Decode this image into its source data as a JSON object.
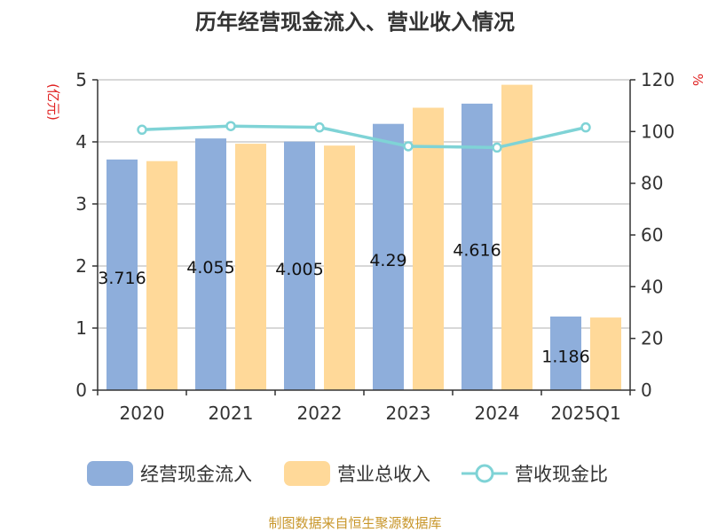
{
  "chart_data": {
    "type": "bar",
    "title": "历年经营现金流入、营业收入情况",
    "left_unit": "(亿元)",
    "right_unit": "%",
    "categories": [
      "2020",
      "2021",
      "2022",
      "2023",
      "2024",
      "2025Q1"
    ],
    "left_ylim": [
      0,
      5
    ],
    "left_ticks": [
      "0",
      "1",
      "2",
      "3",
      "4",
      "5"
    ],
    "right_ylim": [
      0,
      120
    ],
    "right_ticks": [
      "0",
      "20",
      "40",
      "60",
      "80",
      "100",
      "120"
    ],
    "grid": true,
    "legend_position": "bottom",
    "series": [
      {
        "name": "经营现金流入",
        "type": "bar",
        "axis": "left",
        "color": "#8eaedb",
        "values": [
          3.716,
          4.055,
          4.005,
          4.29,
          4.616,
          1.186
        ],
        "labels": [
          "3.716",
          "4.055",
          "4.005",
          "4.29",
          "4.616",
          "1.186"
        ]
      },
      {
        "name": "营业总收入",
        "type": "bar",
        "axis": "left",
        "color": "#ffd999",
        "values": [
          3.69,
          3.97,
          3.94,
          4.55,
          4.92,
          1.17
        ]
      },
      {
        "name": "营收现金比",
        "type": "line",
        "axis": "right",
        "color": "#7fd3d6",
        "values": [
          100.7,
          102.1,
          101.6,
          94.3,
          93.8,
          101.6
        ]
      }
    ],
    "source": "制图数据来自恒生聚源数据库"
  }
}
